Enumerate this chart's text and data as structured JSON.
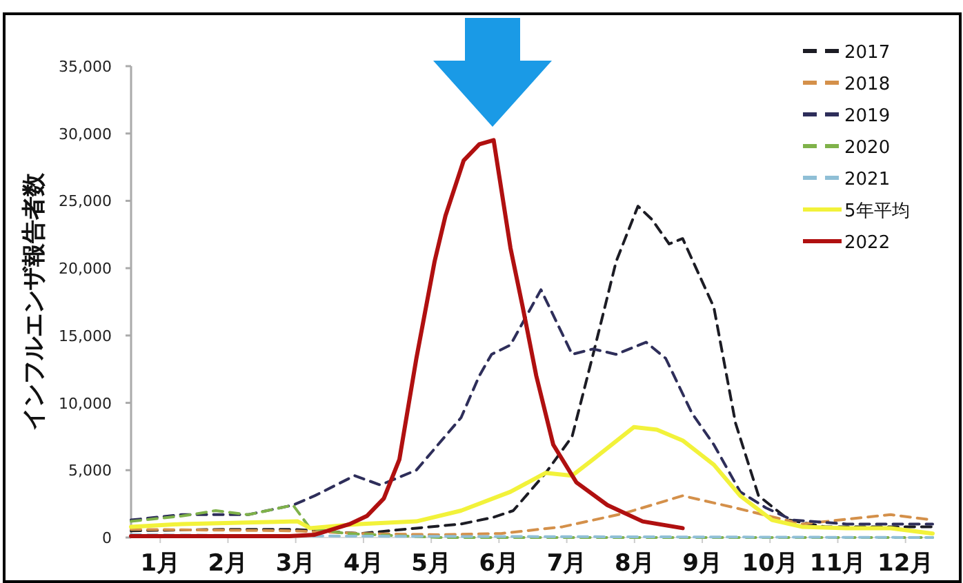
{
  "chart_data": {
    "type": "line",
    "ylabel": "インフルエンザ報告者数",
    "legend": "top right",
    "grid": false,
    "xlim": [
      0.57,
      12.4
    ],
    "xticks": [
      {
        "value": 1,
        "label": "1月"
      },
      {
        "value": 2,
        "label": "2月"
      },
      {
        "value": 3,
        "label": "3月"
      },
      {
        "value": 4,
        "label": "4月"
      },
      {
        "value": 5,
        "label": "5月"
      },
      {
        "value": 6,
        "label": "6月"
      },
      {
        "value": 7,
        "label": "7月"
      },
      {
        "value": 8,
        "label": "8月"
      },
      {
        "value": 9,
        "label": "9月"
      },
      {
        "value": 10,
        "label": "10月"
      },
      {
        "value": 11,
        "label": "11月"
      },
      {
        "value": 12,
        "label": "12月"
      }
    ],
    "ylim": [
      0,
      35000
    ],
    "yticks": [
      0,
      {
        "value": 5000,
        "label": "5,000"
      },
      {
        "value": 10000,
        "label": "10,000"
      },
      {
        "value": 15000,
        "label": "15,000"
      },
      {
        "value": 20000,
        "label": "20,000"
      },
      {
        "value": 25000,
        "label": "25,000"
      },
      {
        "value": 30000,
        "label": "30,000"
      },
      {
        "value": 35000,
        "label": "35,000"
      }
    ],
    "series": [
      {
        "name": "2017",
        "color": "#1c1c24",
        "line_style": "dashed",
        "x": [
          0.57,
          1.91,
          2.96,
          3.96,
          4.78,
          5.44,
          5.92,
          6.21,
          6.69,
          7.08,
          7.39,
          7.73,
          8.05,
          8.26,
          8.51,
          8.71,
          9.17,
          9.49,
          9.83,
          10.28,
          10.81,
          11.78,
          12.4
        ],
        "values": [
          500,
          600,
          600,
          300,
          700,
          1000,
          1500,
          2000,
          4800,
          7500,
          13600,
          20500,
          24600,
          23600,
          21800,
          22200,
          17100,
          8500,
          3100,
          1300,
          800,
          800,
          800
        ]
      },
      {
        "name": "2018",
        "color": "#d4904a",
        "line_style": "dashed",
        "x": [
          0.57,
          2.96,
          3.96,
          5.12,
          6.03,
          6.94,
          7.85,
          8.71,
          9.49,
          10.47,
          11.78,
          12.4
        ],
        "values": [
          600,
          500,
          300,
          200,
          300,
          800,
          1800,
          3100,
          2200,
          1000,
          1700,
          1300
        ]
      },
      {
        "name": "2019",
        "color": "#2e2e5a",
        "line_style": "dashed",
        "x": [
          0.57,
          1.32,
          2.3,
          2.96,
          3.28,
          3.87,
          4.25,
          4.78,
          5.44,
          5.71,
          5.89,
          6.17,
          6.62,
          7.08,
          7.39,
          7.73,
          8.17,
          8.46,
          8.85,
          9.17,
          9.56,
          9.94,
          10.33,
          11.13,
          12.4
        ],
        "values": [
          1300,
          1700,
          1700,
          2400,
          3100,
          4600,
          3900,
          5000,
          8900,
          12000,
          13600,
          14300,
          18400,
          13600,
          14000,
          13600,
          14500,
          13300,
          9200,
          6900,
          3400,
          2200,
          1300,
          1000,
          1000
        ]
      },
      {
        "name": "2020",
        "color": "#7fb24a",
        "line_style": "dashed",
        "x": [
          0.57,
          1.32,
          1.82,
          2.3,
          2.96,
          3.21,
          3.75,
          4.66,
          5.12,
          12.4
        ],
        "values": [
          1200,
          1600,
          2000,
          1700,
          2400,
          700,
          300,
          100,
          0,
          0
        ]
      },
      {
        "name": "2021",
        "color": "#8fbfd6",
        "line_style": "dashed",
        "x": [
          0.57,
          3.75,
          12.4
        ],
        "values": [
          200,
          100,
          0
        ]
      },
      {
        "name": "5年平均",
        "color": "#f2f23a",
        "line_style": "solid",
        "x": [
          0.57,
          1.32,
          3.03,
          3.21,
          3.94,
          4.78,
          5.44,
          6.17,
          6.69,
          7.08,
          7.39,
          7.99,
          8.33,
          8.71,
          9.17,
          9.56,
          10.03,
          10.47,
          11.13,
          11.78,
          12.4
        ],
        "values": [
          800,
          1000,
          1200,
          700,
          1000,
          1200,
          2000,
          3400,
          4800,
          4600,
          5800,
          8200,
          8000,
          7200,
          5400,
          3100,
          1300,
          800,
          700,
          700,
          300
        ]
      },
      {
        "name": "2022",
        "color": "#b01010",
        "line_style": "solid",
        "x": [
          0.57,
          2.91,
          3.28,
          3.8,
          4.05,
          4.3,
          4.53,
          4.78,
          5.05,
          5.21,
          5.48,
          5.71,
          5.92,
          6.17,
          6.35,
          6.55,
          6.8,
          7.14,
          7.6,
          8.12,
          8.71
        ],
        "values": [
          100,
          100,
          200,
          1000,
          1600,
          2900,
          5800,
          13300,
          20500,
          23900,
          28000,
          29200,
          29500,
          21500,
          17100,
          12000,
          6900,
          4100,
          2400,
          1200,
          700
        ]
      }
    ]
  }
}
